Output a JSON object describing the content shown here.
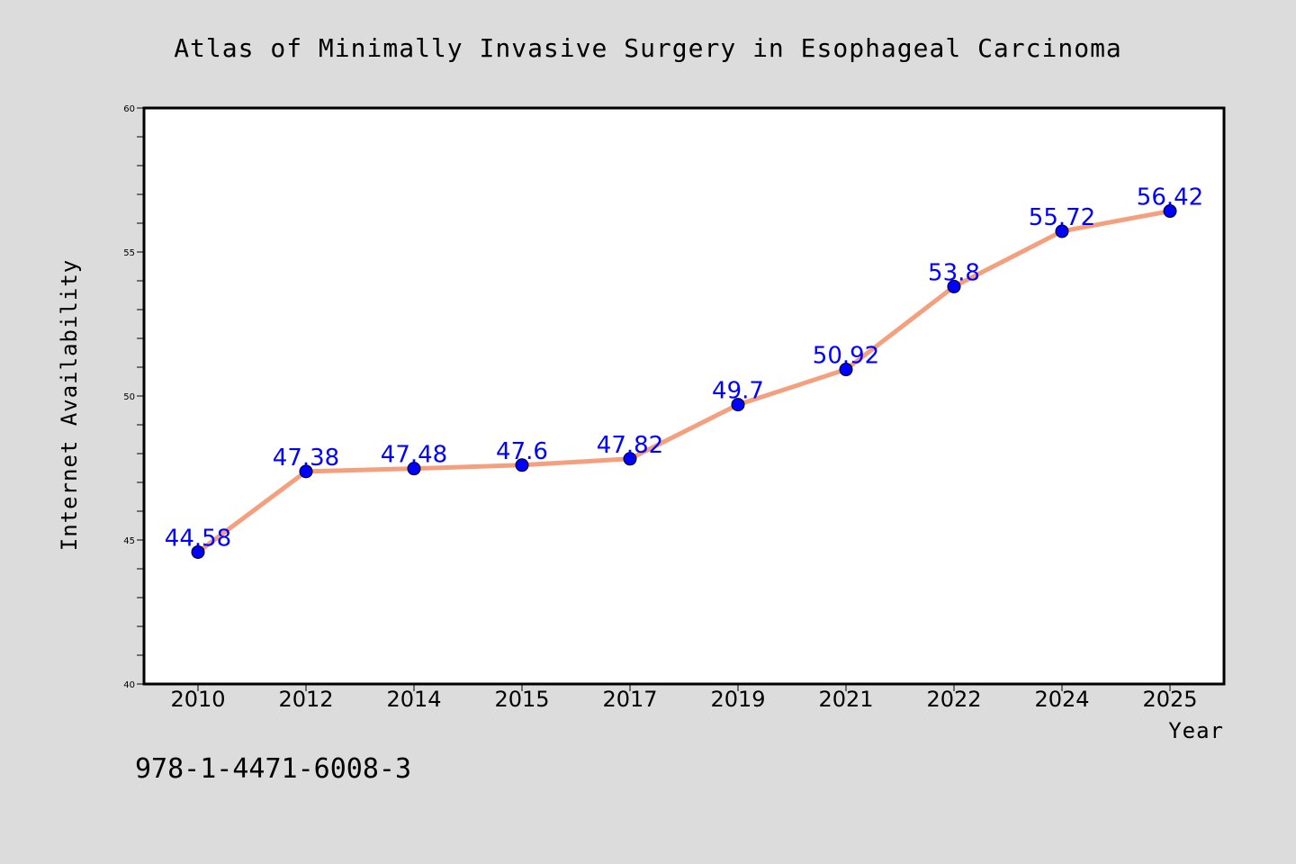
{
  "chart_data": {
    "type": "line",
    "title": "Atlas of Minimally Invasive Surgery in Esophageal Carcinoma",
    "xlabel": "Year",
    "ylabel": "Internet Availability",
    "categories": [
      "2010",
      "2012",
      "2014",
      "2015",
      "2017",
      "2019",
      "2021",
      "2022",
      "2024",
      "2025"
    ],
    "values": [
      44.58,
      47.38,
      47.48,
      47.6,
      47.82,
      49.7,
      50.92,
      53.8,
      55.72,
      56.42
    ],
    "data_labels": [
      "44.58",
      "47.38",
      "47.48",
      "47.6",
      "47.82",
      "49.7",
      "50.92",
      "53.8",
      "55.72",
      "56.42"
    ],
    "ylim": [
      40,
      60
    ],
    "yticks": [
      "40",
      "45",
      "50",
      "55",
      "60"
    ],
    "grid": false,
    "line_color": "#f4a07e",
    "marker_color": "#0000ff",
    "label_color": "#0000ff"
  },
  "footer": {
    "isbn": "978-1-4471-6008-3"
  }
}
